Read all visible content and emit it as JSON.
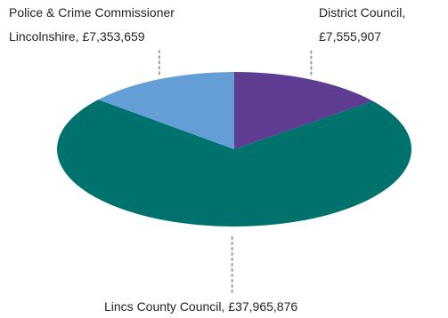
{
  "chart_data": {
    "type": "pie",
    "title": "",
    "slices": [
      {
        "label_lines": [
          "District Council,",
          "£7,555,907"
        ],
        "value": 7555907,
        "color": "#5d3c91"
      },
      {
        "label_lines": [
          "Lincs County Council, £37,965,876"
        ],
        "value": 37965876,
        "color": "#00726d"
      },
      {
        "label_lines": [
          "Police & Crime Commissioner",
          "Lincolnshire, £7,353,659"
        ],
        "value": 7353659,
        "color": "#639fd6"
      }
    ]
  }
}
